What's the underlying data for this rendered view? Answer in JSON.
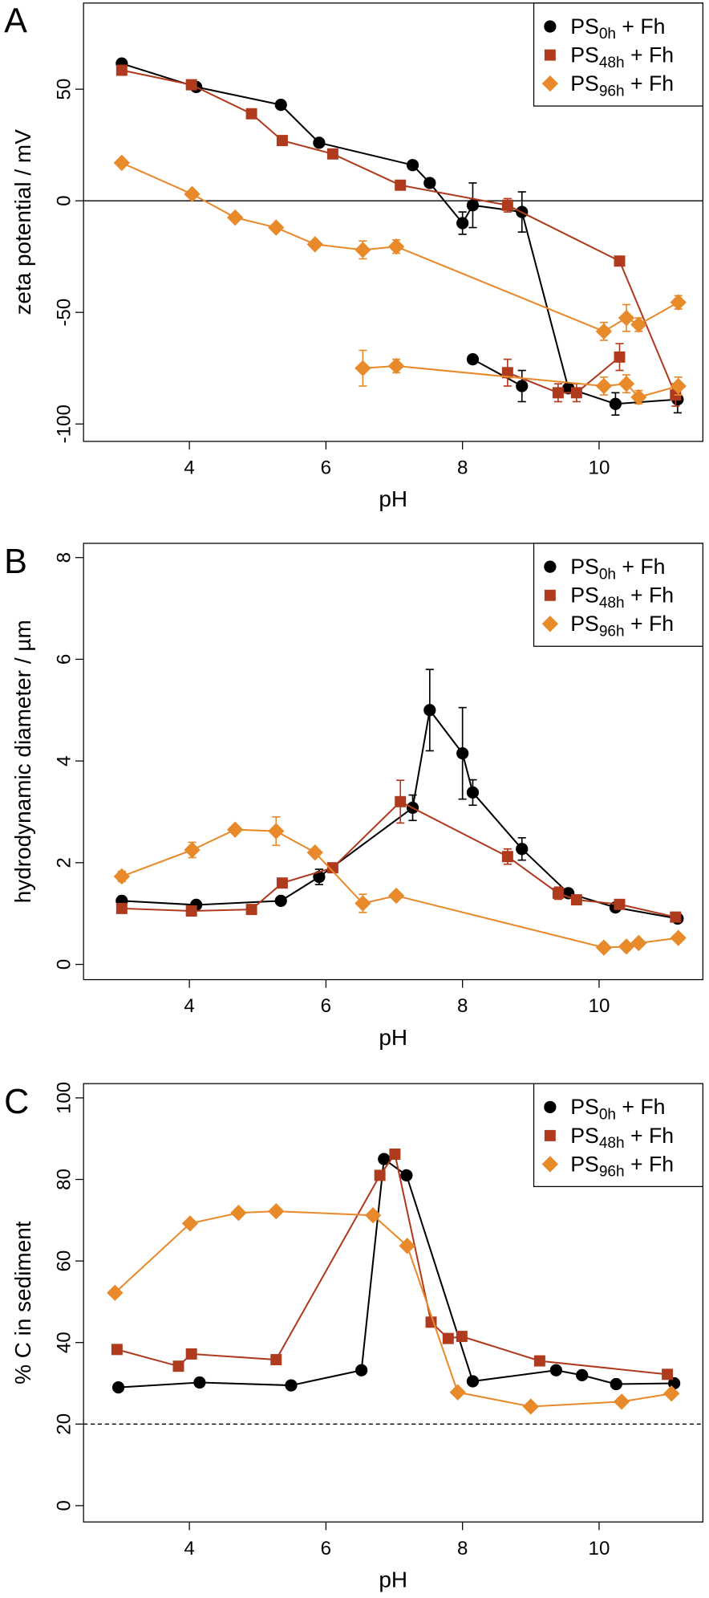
{
  "chart_data": [
    {
      "type": "line",
      "label": "A",
      "xlabel": "pH",
      "ylabel": "zeta potential / mV",
      "xlim": [
        2.45,
        11.52
      ],
      "ylim": [
        -107.8,
        88.6
      ],
      "xticks": [
        4,
        6,
        8,
        10
      ],
      "yticks": [
        -100,
        -50,
        0,
        50
      ],
      "hline": 0,
      "hline_style": "solid",
      "legend": "upper right",
      "series": [
        {
          "name": "PS0h + Fh",
          "color": "#000000",
          "marker": "circle",
          "x": [
            3.01,
            4.1,
            5.34,
            5.9,
            7.27,
            7.52,
            8.0,
            8.15,
            8.87,
            9.55,
            10.24,
            11.15,
            null,
            8.15,
            8.87
          ],
          "values": [
            61.5,
            51,
            43,
            26,
            16,
            8,
            -10,
            -2,
            -5,
            -84,
            -91,
            -89,
            null,
            -71,
            -83
          ],
          "errors": [
            null,
            null,
            null,
            null,
            null,
            null,
            5,
            10,
            9,
            null,
            5,
            6,
            null,
            null,
            7
          ]
        },
        {
          "name": "PS48h + Fh",
          "color": "#b03a1e",
          "marker": "square",
          "x": [
            3.01,
            4.03,
            4.91,
            5.36,
            6.1,
            7.09,
            8.66,
            10.3,
            11.12,
            null,
            8.66,
            9.4,
            9.67,
            10.3
          ],
          "values": [
            58.5,
            52,
            39,
            27,
            21,
            7,
            -2,
            -27,
            -87,
            null,
            -77,
            -86,
            -86,
            -70
          ],
          "errors": [
            null,
            null,
            null,
            null,
            null,
            null,
            3,
            null,
            5,
            null,
            6,
            4,
            4,
            6
          ]
        },
        {
          "name": "PS96h + Fh",
          "color": "#e8892a",
          "marker": "diamond",
          "x": [
            3.01,
            4.04,
            4.67,
            5.27,
            5.84,
            6.54,
            7.03,
            10.07,
            10.4,
            10.58,
            11.16,
            null,
            6.54,
            7.03,
            10.07,
            10.4,
            10.58,
            11.16
          ],
          "values": [
            17,
            3,
            -7.5,
            -12,
            -19.5,
            -22,
            -20.5,
            -58.5,
            -52.5,
            -55.5,
            -45.5,
            null,
            -75,
            -74,
            -83,
            -82,
            -88,
            -83
          ],
          "errors": [
            null,
            null,
            null,
            null,
            null,
            4,
            3,
            4,
            6,
            3,
            3,
            null,
            8,
            3,
            4,
            4,
            3,
            4
          ]
        }
      ]
    },
    {
      "type": "line",
      "label": "B",
      "xlabel": "pH",
      "ylabel": "hydrodynamic diameter / µm",
      "xlim": [
        2.45,
        11.52
      ],
      "ylim": [
        -0.3,
        8.28
      ],
      "xticks": [
        4,
        6,
        8,
        10
      ],
      "yticks": [
        0,
        2,
        4,
        6,
        8
      ],
      "legend": "upper right",
      "series": [
        {
          "name": "PS0h + Fh",
          "color": "#000000",
          "marker": "circle",
          "x": [
            3.01,
            4.1,
            5.34,
            5.9,
            7.27,
            7.52,
            8.0,
            8.15,
            8.87,
            9.55,
            10.24,
            11.15
          ],
          "values": [
            1.25,
            1.17,
            1.25,
            1.72,
            3.08,
            5.0,
            4.15,
            3.38,
            2.27,
            1.4,
            1.12,
            0.9
          ],
          "errors": [
            null,
            null,
            null,
            0.15,
            0.25,
            0.8,
            0.9,
            0.25,
            0.22,
            null,
            null,
            null
          ]
        },
        {
          "name": "PS48h + Fh",
          "color": "#b03a1e",
          "marker": "square",
          "x": [
            3.01,
            4.03,
            4.91,
            5.36,
            6.1,
            7.09,
            8.66,
            9.4,
            9.67,
            10.3,
            11.12
          ],
          "values": [
            1.1,
            1.05,
            1.08,
            1.6,
            1.9,
            3.2,
            2.12,
            1.4,
            1.27,
            1.18,
            0.93
          ],
          "errors": [
            null,
            null,
            null,
            null,
            null,
            0.42,
            0.15,
            0.12,
            null,
            null,
            null
          ]
        },
        {
          "name": "PS96h + Fh",
          "color": "#e8892a",
          "marker": "diamond",
          "x": [
            3.01,
            4.04,
            4.67,
            5.27,
            5.84,
            6.54,
            7.03,
            10.07,
            10.4,
            10.58,
            11.16
          ],
          "values": [
            1.73,
            2.25,
            2.65,
            2.62,
            2.2,
            1.2,
            1.35,
            0.33,
            0.35,
            0.42,
            0.52
          ],
          "errors": [
            0.1,
            0.15,
            null,
            0.28,
            null,
            0.18,
            null,
            null,
            null,
            null,
            null
          ]
        }
      ]
    },
    {
      "type": "line",
      "label": "C",
      "xlabel": "pH",
      "ylabel": "% C in sediment",
      "xlim": [
        2.45,
        11.52
      ],
      "ylim": [
        -4,
        103.5
      ],
      "xticks": [
        4,
        6,
        8,
        10
      ],
      "yticks": [
        0,
        20,
        40,
        60,
        80,
        100
      ],
      "hline": 20,
      "hline_style": "dashed",
      "legend": "upper right",
      "series": [
        {
          "name": "PS0h + Fh",
          "color": "#000000",
          "marker": "circle",
          "x": [
            2.96,
            4.15,
            5.49,
            6.52,
            6.85,
            7.18,
            8.15,
            9.37,
            9.75,
            10.25,
            11.1
          ],
          "values": [
            29,
            30.2,
            29.5,
            33.2,
            85,
            81,
            30.5,
            33.2,
            32,
            29.8,
            30
          ]
        },
        {
          "name": "PS48h + Fh",
          "color": "#b03a1e",
          "marker": "square",
          "x": [
            2.94,
            3.84,
            4.03,
            5.27,
            6.79,
            7.01,
            7.54,
            7.79,
            7.99,
            9.13,
            11.0
          ],
          "values": [
            38.3,
            34.2,
            37.2,
            35.8,
            81,
            86.2,
            45,
            41,
            41.5,
            35.5,
            32.2
          ]
        },
        {
          "name": "PS96h + Fh",
          "color": "#e8892a",
          "marker": "diamond",
          "x": [
            2.91,
            4.01,
            4.72,
            5.27,
            6.69,
            7.19,
            7.93,
            9.0,
            10.33,
            11.06
          ],
          "values": [
            52.2,
            69.2,
            71.8,
            72.2,
            71.2,
            63.7,
            27.8,
            24.3,
            25.5,
            27.5
          ]
        }
      ]
    }
  ]
}
